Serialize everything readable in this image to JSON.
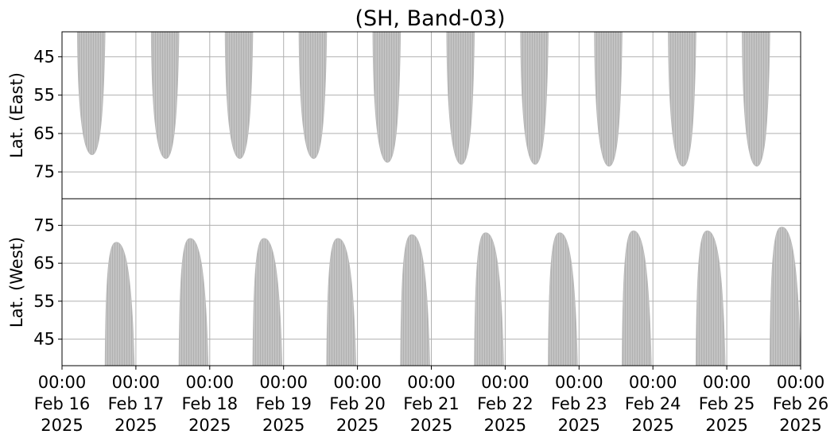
{
  "chart_data": {
    "type": "heatmap",
    "title": "(SH, Band-03)",
    "x_ticks": [
      {
        "time": "00:00",
        "date": "Feb 16",
        "year": "2025"
      },
      {
        "time": "00:00",
        "date": "Feb 17",
        "year": "2025"
      },
      {
        "time": "00:00",
        "date": "Feb 18",
        "year": "2025"
      },
      {
        "time": "00:00",
        "date": "Feb 19",
        "year": "2025"
      },
      {
        "time": "00:00",
        "date": "Feb 20",
        "year": "2025"
      },
      {
        "time": "00:00",
        "date": "Feb 21",
        "year": "2025"
      },
      {
        "time": "00:00",
        "date": "Feb 22",
        "year": "2025"
      },
      {
        "time": "00:00",
        "date": "Feb 23",
        "year": "2025"
      },
      {
        "time": "00:00",
        "date": "Feb 24",
        "year": "2025"
      },
      {
        "time": "00:00",
        "date": "Feb 25",
        "year": "2025"
      },
      {
        "time": "00:00",
        "date": "Feb 26",
        "year": "2025"
      }
    ],
    "xlim": [
      "2025-02-16T00:00",
      "2025-02-26T00:00"
    ],
    "grid": true,
    "coverage_color": "#bdbdbd",
    "panels": [
      {
        "name": "east",
        "ylabel": "Lat. (East)",
        "yticks": [
          45,
          55,
          65,
          75
        ],
        "ylim": [
          38.5,
          82
        ],
        "y_inverted": true,
        "coverage": [
          {
            "start": "2025-02-16T05:00",
            "end": "2025-02-16T14:00",
            "edge_lat": 70.5
          },
          {
            "start": "2025-02-17T05:00",
            "end": "2025-02-17T14:00",
            "edge_lat": 71.5
          },
          {
            "start": "2025-02-18T05:00",
            "end": "2025-02-18T14:00",
            "edge_lat": 71.5
          },
          {
            "start": "2025-02-19T05:00",
            "end": "2025-02-19T14:00",
            "edge_lat": 71.5
          },
          {
            "start": "2025-02-20T05:00",
            "end": "2025-02-20T14:00",
            "edge_lat": 72.5
          },
          {
            "start": "2025-02-21T05:00",
            "end": "2025-02-21T14:00",
            "edge_lat": 73.0
          },
          {
            "start": "2025-02-22T05:00",
            "end": "2025-02-22T14:00",
            "edge_lat": 73.0
          },
          {
            "start": "2025-02-23T05:00",
            "end": "2025-02-23T14:00",
            "edge_lat": 73.5
          },
          {
            "start": "2025-02-24T05:00",
            "end": "2025-02-24T14:00",
            "edge_lat": 73.5
          },
          {
            "start": "2025-02-25T05:00",
            "end": "2025-02-25T14:00",
            "edge_lat": 73.5
          }
        ]
      },
      {
        "name": "west",
        "ylabel": "Lat. (West)",
        "yticks": [
          45,
          55,
          65,
          75
        ],
        "ylim": [
          38,
          82
        ],
        "y_inverted": false,
        "coverage": [
          {
            "start": "2025-02-16T14:00",
            "end": "2025-02-16T23:30",
            "edge_lat": 70.5
          },
          {
            "start": "2025-02-17T14:00",
            "end": "2025-02-17T23:30",
            "edge_lat": 71.5
          },
          {
            "start": "2025-02-18T14:00",
            "end": "2025-02-18T23:30",
            "edge_lat": 71.5
          },
          {
            "start": "2025-02-19T14:00",
            "end": "2025-02-19T23:30",
            "edge_lat": 71.5
          },
          {
            "start": "2025-02-20T14:00",
            "end": "2025-02-20T23:30",
            "edge_lat": 72.5
          },
          {
            "start": "2025-02-21T14:00",
            "end": "2025-02-21T23:30",
            "edge_lat": 73.0
          },
          {
            "start": "2025-02-22T14:00",
            "end": "2025-02-22T23:30",
            "edge_lat": 73.0
          },
          {
            "start": "2025-02-23T14:00",
            "end": "2025-02-23T23:30",
            "edge_lat": 73.5
          },
          {
            "start": "2025-02-24T14:00",
            "end": "2025-02-24T23:30",
            "edge_lat": 73.5
          },
          {
            "start": "2025-02-25T14:00",
            "end": "2025-02-26T00:00",
            "edge_lat": 74.5
          }
        ]
      }
    ]
  }
}
